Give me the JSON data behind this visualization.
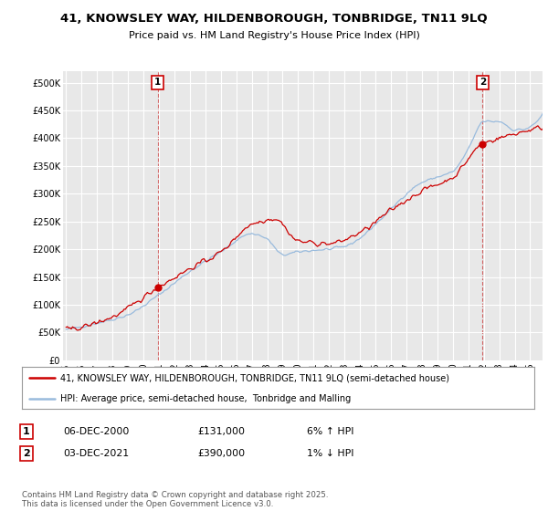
{
  "title": "41, KNOWSLEY WAY, HILDENBOROUGH, TONBRIDGE, TN11 9LQ",
  "subtitle": "Price paid vs. HM Land Registry's House Price Index (HPI)",
  "ylabel_ticks": [
    "£0",
    "£50K",
    "£100K",
    "£150K",
    "£200K",
    "£250K",
    "£300K",
    "£350K",
    "£400K",
    "£450K",
    "£500K"
  ],
  "ytick_values": [
    0,
    50000,
    100000,
    150000,
    200000,
    250000,
    300000,
    350000,
    400000,
    450000,
    500000
  ],
  "ylim": [
    0,
    520000
  ],
  "xlim_start": 1994.8,
  "xlim_end": 2025.8,
  "background_color": "#ffffff",
  "plot_bg_color": "#e8e8e8",
  "grid_color": "#ffffff",
  "line1_color": "#cc0000",
  "line2_color": "#99bbdd",
  "sale1_x": 2000.92,
  "sale1_y": 131000,
  "sale2_x": 2021.92,
  "sale2_y": 390000,
  "legend1_text": "41, KNOWSLEY WAY, HILDENBOROUGH, TONBRIDGE, TN11 9LQ (semi-detached house)",
  "legend2_text": "HPI: Average price, semi-detached house,  Tonbridge and Malling",
  "table_row1": [
    "1",
    "06-DEC-2000",
    "£131,000",
    "6% ↑ HPI"
  ],
  "table_row2": [
    "2",
    "03-DEC-2021",
    "£390,000",
    "1% ↓ HPI"
  ],
  "footer": "Contains HM Land Registry data © Crown copyright and database right 2025.\nThis data is licensed under the Open Government Licence v3.0.",
  "xtick_years": [
    1995,
    1996,
    1997,
    1998,
    1999,
    2000,
    2001,
    2002,
    2003,
    2004,
    2005,
    2006,
    2007,
    2008,
    2009,
    2010,
    2011,
    2012,
    2013,
    2014,
    2015,
    2016,
    2017,
    2018,
    2019,
    2020,
    2021,
    2022,
    2023,
    2024,
    2025
  ]
}
